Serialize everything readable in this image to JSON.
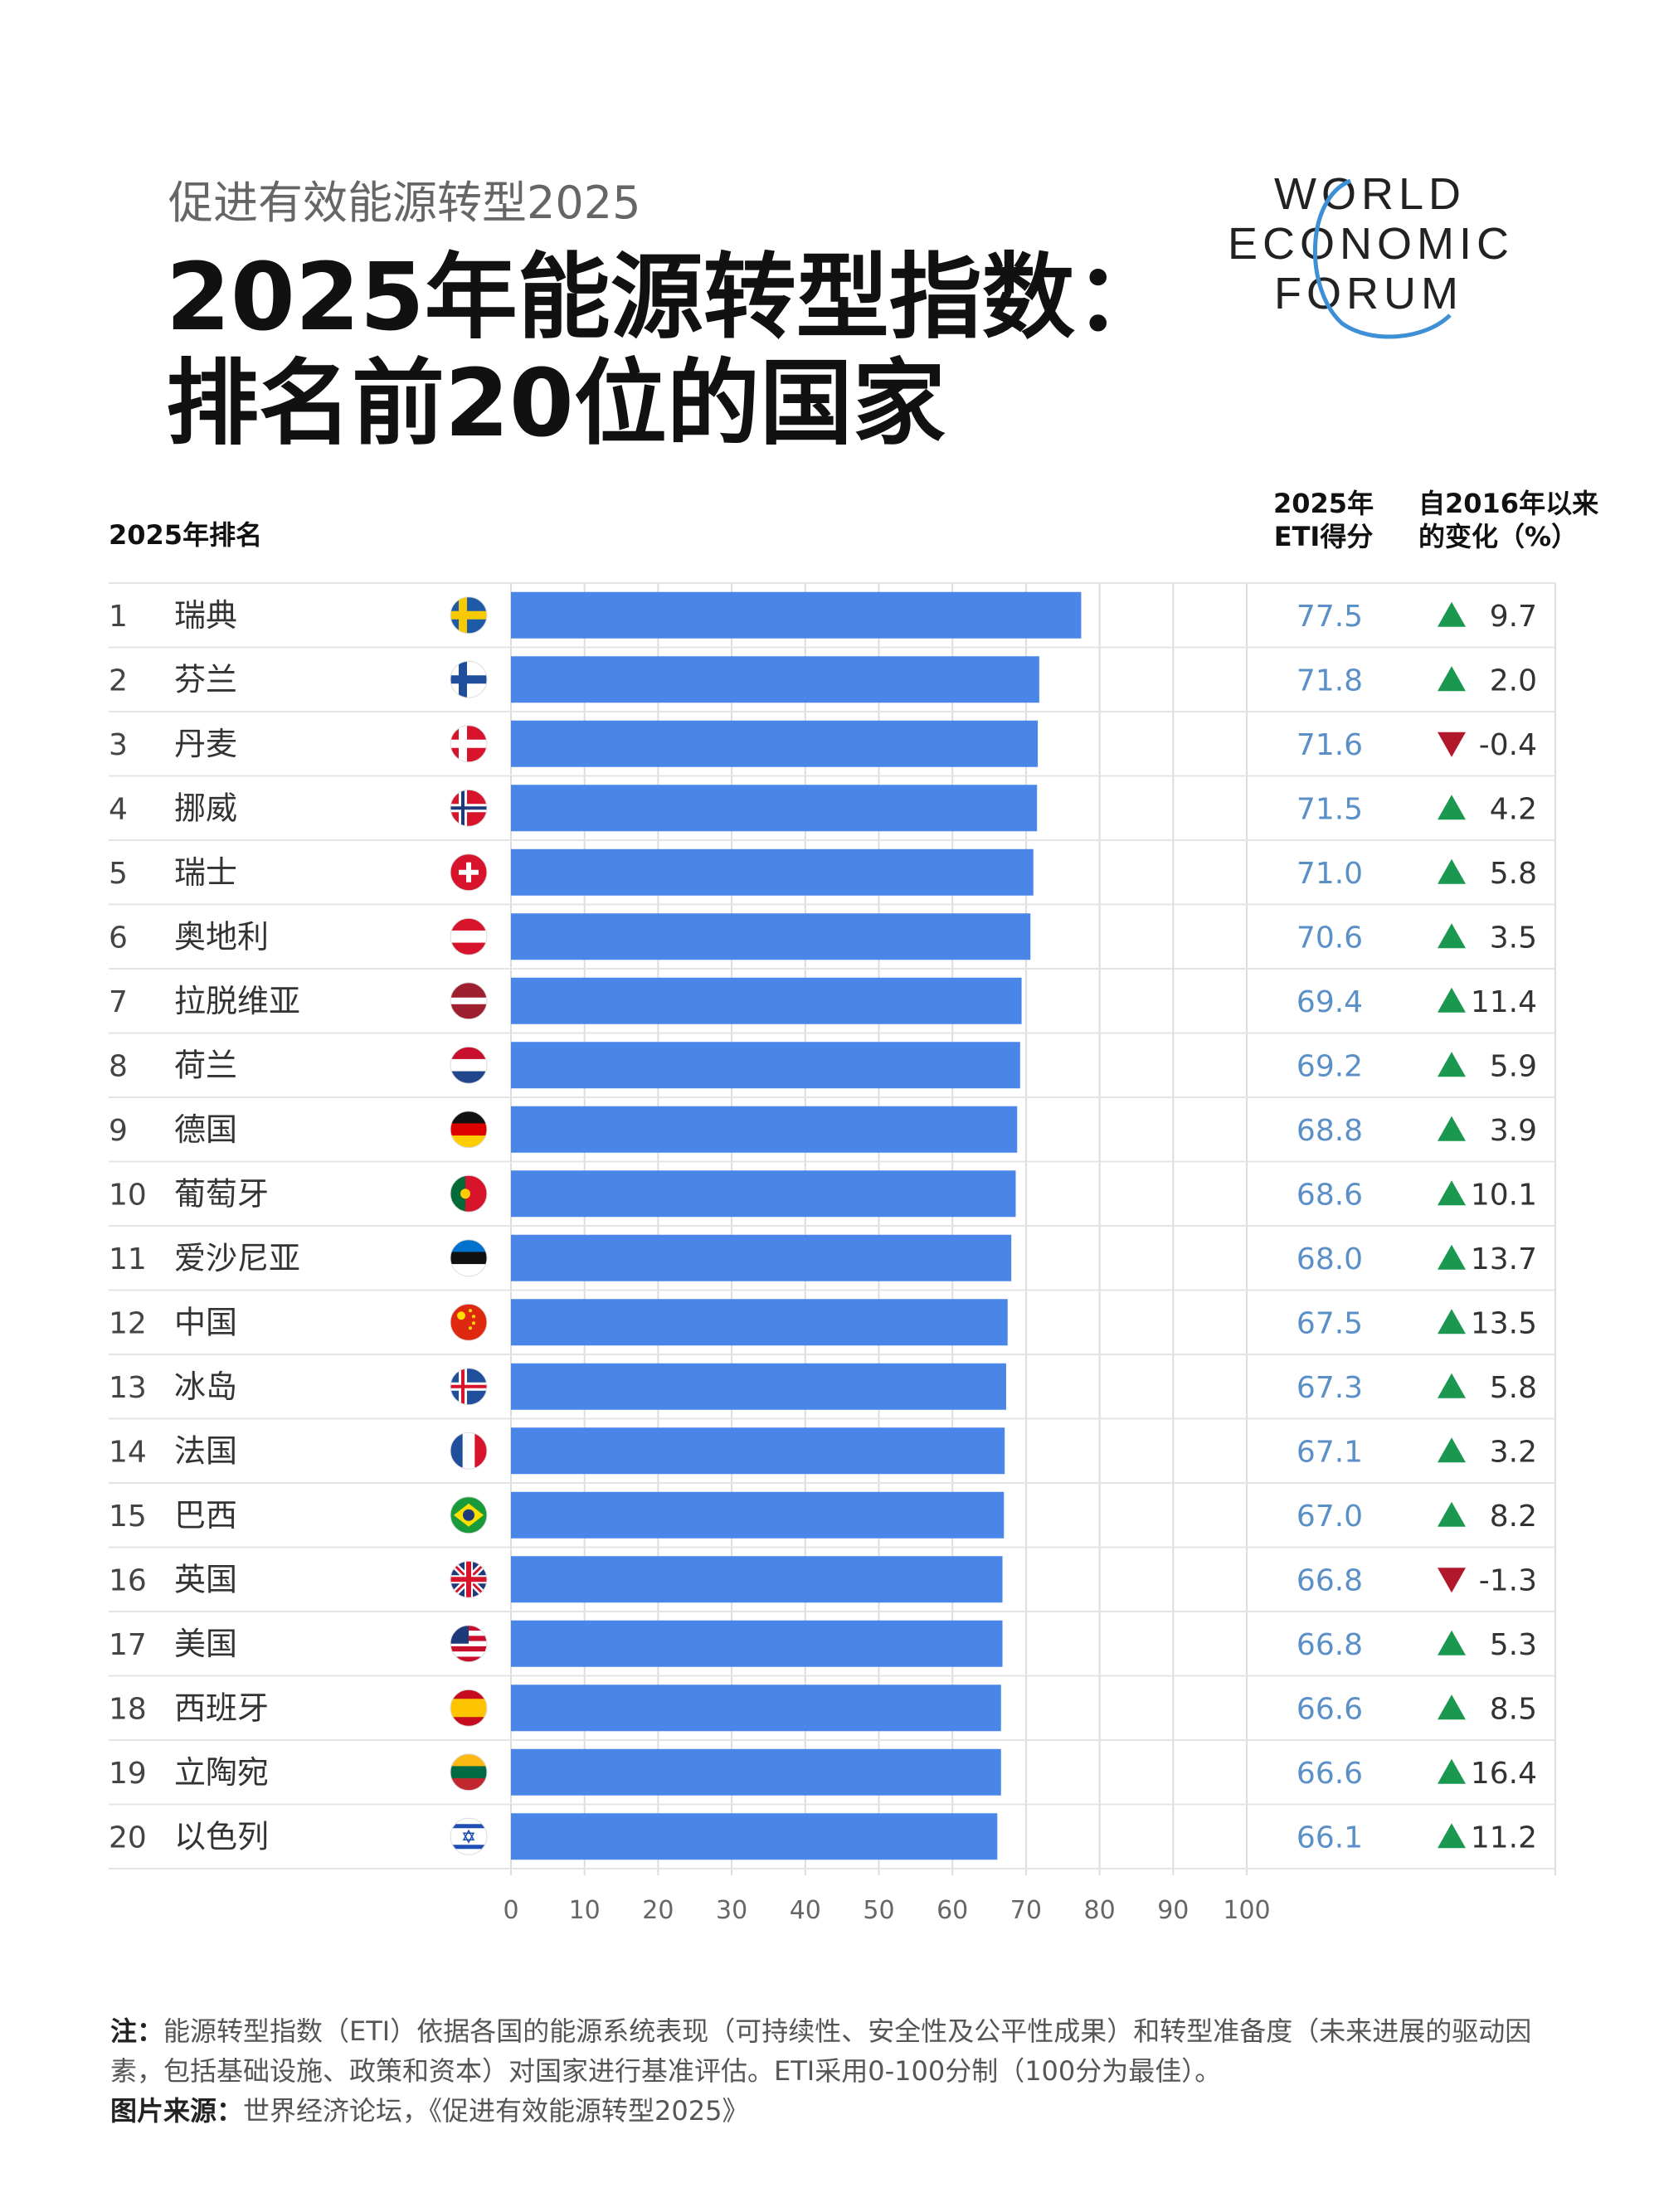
{
  "header": {
    "subtitle": "促进有效能源转型2025",
    "title_line1": "2025年能源转型指数：",
    "title_line2": "排名前20位的国家",
    "logo_lines": [
      "WORLD",
      "ECONOMIC",
      "FORUM"
    ]
  },
  "columns": {
    "rank": "2025年排名",
    "score_line1": "2025年",
    "score_line2": "ETI得分",
    "change_line1": "自2016年以来",
    "change_line2": "的变化（%）"
  },
  "colors": {
    "bar": "#4a86e8",
    "up": "#1a9850",
    "down": "#b2182b",
    "score_text": "#5b8fc7",
    "grid": "#dddddd"
  },
  "chart_data": {
    "type": "bar",
    "orientation": "horizontal",
    "xlim": [
      0,
      100
    ],
    "xticks": [
      0,
      10,
      20,
      30,
      40,
      50,
      60,
      70,
      80,
      90,
      100
    ],
    "ranks": [
      1,
      2,
      3,
      4,
      5,
      6,
      7,
      8,
      9,
      10,
      11,
      12,
      13,
      14,
      15,
      16,
      17,
      18,
      19,
      20
    ],
    "categories": [
      "瑞典",
      "芬兰",
      "丹麦",
      "挪威",
      "瑞士",
      "奥地利",
      "拉脱维亚",
      "荷兰",
      "德国",
      "葡萄牙",
      "爱沙尼亚",
      "中国",
      "冰岛",
      "法国",
      "巴西",
      "英国",
      "美国",
      "西班牙",
      "立陶宛",
      "以色列"
    ],
    "flags": [
      "se",
      "fi",
      "dk",
      "no",
      "ch",
      "at",
      "lv",
      "nl",
      "de",
      "pt",
      "ee",
      "cn",
      "is",
      "fr",
      "br",
      "gb",
      "us",
      "es",
      "lt",
      "il"
    ],
    "values": [
      77.5,
      71.8,
      71.6,
      71.5,
      71.0,
      70.6,
      69.4,
      69.2,
      68.8,
      68.6,
      68.0,
      67.5,
      67.3,
      67.1,
      67.0,
      66.8,
      66.8,
      66.6,
      66.6,
      66.1
    ],
    "score_labels": [
      "77.5",
      "71.8",
      "71.6",
      "71.5",
      "71.0",
      "70.6",
      "69.4",
      "69.2",
      "68.8",
      "68.6",
      "68.0",
      "67.5",
      "67.3",
      "67.1",
      "67.0",
      "66.8",
      "66.8",
      "66.6",
      "66.6",
      "66.1"
    ],
    "change": [
      9.7,
      2.0,
      -0.4,
      4.2,
      5.8,
      3.5,
      11.4,
      5.9,
      3.9,
      10.1,
      13.7,
      13.5,
      5.8,
      3.2,
      8.2,
      -1.3,
      5.3,
      8.5,
      16.4,
      11.2
    ],
    "change_labels": [
      "9.7",
      "2.0",
      "-0.4",
      "4.2",
      "5.8",
      "3.5",
      "11.4",
      "5.9",
      "3.9",
      "10.1",
      "13.7",
      "13.5",
      "5.8",
      "3.2",
      "8.2",
      "-1.3",
      "5.3",
      "8.5",
      "16.4",
      "11.2"
    ]
  },
  "note": {
    "label": "注：",
    "text": "能源转型指数（ETI）依据各国的能源系统表现（可持续性、安全性及公平性成果）和转型准备度（未来进展的驱动因素，包括基础设施、政策和资本）对国家进行基准评估。ETI采用0-100分制（100分为最佳）。",
    "source_label": "图片来源：",
    "source_text": "世界经济论坛，《促进有效能源转型2025》"
  }
}
